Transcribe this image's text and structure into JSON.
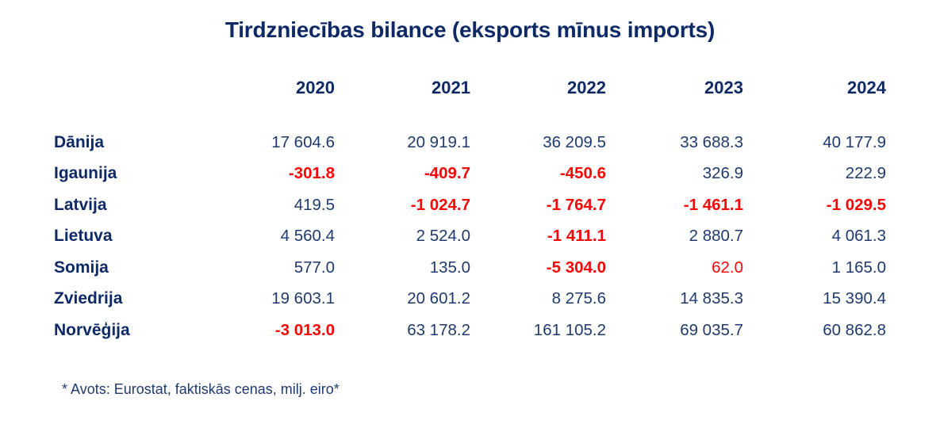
{
  "title": "Tirdzniecības bilance (eksports mīnus imports)",
  "colors": {
    "navy_heading": "#0e2a66",
    "navy_value": "#1e3a6e",
    "negative_red": "#f80505",
    "background": "#ffffff"
  },
  "table": {
    "years": [
      "2020",
      "2021",
      "2022",
      "2023",
      "2024"
    ],
    "rows": [
      {
        "country": "Dānija",
        "values": [
          "17 604.6",
          "20 919.1",
          "36 209.5",
          "33 688.3",
          "40 177.9"
        ],
        "styles": [
          "pos",
          "pos",
          "pos",
          "pos",
          "pos"
        ]
      },
      {
        "country": "Igaunija",
        "values": [
          "-301.8",
          "-409.7",
          "-450.6",
          "326.9",
          "222.9"
        ],
        "styles": [
          "neg",
          "neg",
          "neg",
          "pos",
          "pos"
        ]
      },
      {
        "country": "Latvija",
        "values": [
          "419.5",
          "-1 024.7",
          "-1 764.7",
          "-1 461.1",
          "-1 029.5"
        ],
        "styles": [
          "pos",
          "neg",
          "neg",
          "neg",
          "neg"
        ]
      },
      {
        "country": "Lietuva",
        "values": [
          "4 560.4",
          "2 524.0",
          "-1 411.1",
          "2 880.7",
          "4 061.3"
        ],
        "styles": [
          "pos",
          "pos",
          "neg",
          "pos",
          "pos"
        ]
      },
      {
        "country": "Somija",
        "values": [
          "577.0",
          "135.0",
          "-5 304.0",
          "62.0",
          "1 165.0"
        ],
        "styles": [
          "pos",
          "pos",
          "neg",
          "red-regular",
          "pos"
        ]
      },
      {
        "country": "Zviedrija",
        "values": [
          "19 603.1",
          "20 601.2",
          "8 275.6",
          "14 835.3",
          "15 390.4"
        ],
        "styles": [
          "pos",
          "pos",
          "pos",
          "pos",
          "pos"
        ]
      },
      {
        "country": "Norvēģija",
        "values": [
          "-3 013.0",
          "63 178.2",
          "161 105.2",
          "69 035.7",
          "60 862.8"
        ],
        "styles": [
          "neg",
          "pos",
          "pos",
          "pos",
          "pos"
        ]
      }
    ]
  },
  "footnote": "* Avots: Eurostat, faktiskās cenas, milj. eiro*",
  "chart_data": {
    "type": "table",
    "title": "Tirdzniecības bilance (eksports mīnus imports)",
    "columns": [
      "2020",
      "2021",
      "2022",
      "2023",
      "2024"
    ],
    "rows": [
      {
        "name": "Dānija",
        "values": [
          17604.6,
          20919.1,
          36209.5,
          33688.3,
          40177.9
        ]
      },
      {
        "name": "Igaunija",
        "values": [
          -301.8,
          -409.7,
          -450.6,
          326.9,
          222.9
        ]
      },
      {
        "name": "Latvija",
        "values": [
          419.5,
          -1024.7,
          -1764.7,
          -1461.1,
          -1029.5
        ]
      },
      {
        "name": "Lietuva",
        "values": [
          4560.4,
          2524.0,
          -1411.1,
          2880.7,
          4061.3
        ]
      },
      {
        "name": "Somija",
        "values": [
          577.0,
          135.0,
          -5304.0,
          62.0,
          1165.0
        ]
      },
      {
        "name": "Zviedrija",
        "values": [
          19603.1,
          20601.2,
          8275.6,
          14835.3,
          15390.4
        ]
      },
      {
        "name": "Norvēģija",
        "values": [
          -3013.0,
          63178.2,
          161105.2,
          69035.7,
          60862.8
        ]
      }
    ],
    "units": "milj. eiro",
    "source": "Eurostat, faktiskās cenas",
    "negative_values_highlighted_red": true
  }
}
